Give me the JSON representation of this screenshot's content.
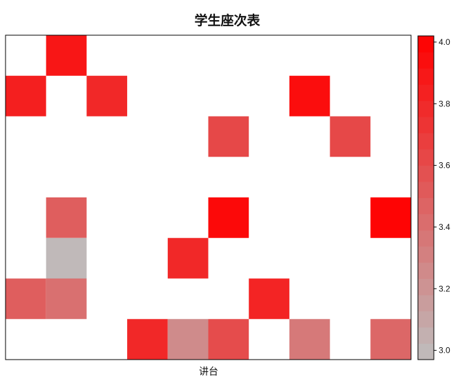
{
  "chart_data": {
    "type": "heatmap",
    "title": "学生座次表",
    "xlabel": "讲台",
    "ylabel": "",
    "rows": 8,
    "cols": 10,
    "grid": false,
    "legend_position": "right",
    "colorbar": {
      "min": 2.97,
      "max": 4.02,
      "ticks": [
        3.0,
        3.2,
        3.4,
        3.6,
        3.8,
        4.0
      ],
      "tick_labels": [
        "3.0",
        "3.2",
        "3.4",
        "3.6",
        "3.8",
        "4.0"
      ],
      "low_color": "#bebebe",
      "high_color": "#ff0000"
    },
    "note_rows": "row 0 is the top row of the seating grid; the lectern is at the bottom",
    "values": [
      [
        null,
        3.9,
        null,
        null,
        null,
        null,
        null,
        null,
        null,
        null
      ],
      [
        3.85,
        null,
        3.8,
        null,
        null,
        null,
        null,
        3.95,
        null,
        null
      ],
      [
        null,
        null,
        null,
        null,
        null,
        3.62,
        null,
        null,
        3.62,
        null
      ],
      [
        null,
        null,
        null,
        null,
        null,
        null,
        null,
        null,
        null,
        null
      ],
      [
        null,
        3.5,
        null,
        null,
        null,
        3.97,
        null,
        null,
        null,
        4.0
      ],
      [
        null,
        3.0,
        null,
        null,
        3.8,
        null,
        null,
        null,
        null,
        null
      ],
      [
        3.5,
        3.4,
        null,
        null,
        null,
        null,
        3.82,
        null,
        null,
        null
      ],
      [
        null,
        null,
        null,
        3.8,
        3.25,
        3.6,
        null,
        3.35,
        null,
        3.45
      ]
    ]
  }
}
